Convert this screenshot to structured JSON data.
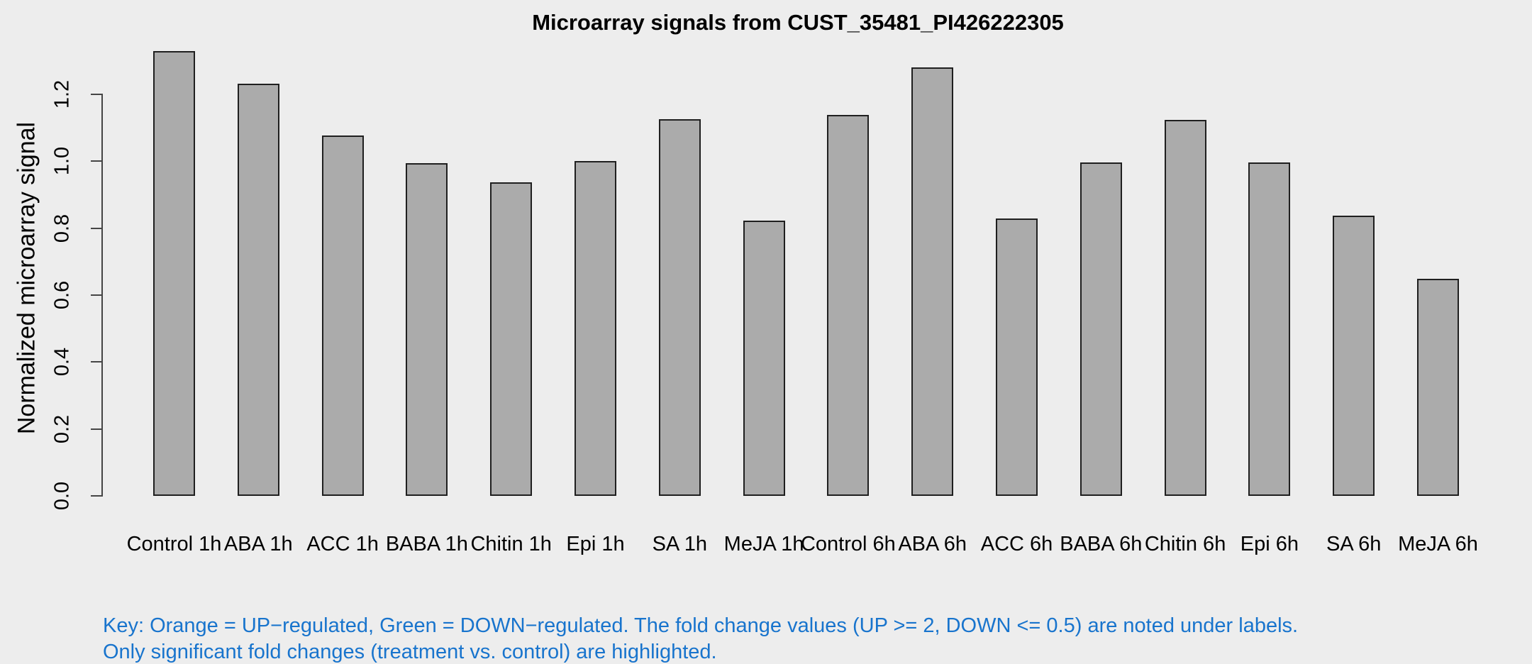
{
  "chart_data": {
    "type": "bar",
    "title": "Microarray signals from CUST_35481_PI426222305",
    "ylabel": "Normalized microarray signal",
    "xlabel": "",
    "categories": [
      "Control 1h",
      "ABA 1h",
      "ACC 1h",
      "BABA 1h",
      "Chitin 1h",
      "Epi 1h",
      "SA 1h",
      "MeJA 1h",
      "Control 6h",
      "ABA 6h",
      "ACC 6h",
      "BABA 6h",
      "Chitin 6h",
      "Epi 6h",
      "SA 6h",
      "MeJA 6h"
    ],
    "values": [
      1.329,
      1.232,
      1.077,
      0.994,
      0.938,
      1.0,
      1.125,
      0.822,
      1.138,
      1.281,
      0.828,
      0.997,
      1.124,
      0.997,
      0.838,
      0.648
    ],
    "y_ticks": [
      0.0,
      0.2,
      0.4,
      0.6,
      0.8,
      1.0,
      1.2
    ],
    "ylim": [
      0,
      1.35
    ],
    "grid": false,
    "legend_position": "none",
    "colors": {
      "background": "#EDEDED",
      "bar_fill": "#ABABAB",
      "bar_border": "#1F1F1F",
      "axis": "#454545",
      "text": "#000000"
    }
  },
  "footer": {
    "line1": "Key: Orange = UP−regulated, Green = DOWN−regulated. The fold change values (UP >= 2, DOWN <= 0.5) are noted under labels.",
    "line2": "Only significant fold changes (treatment vs. control) are highlighted.",
    "color": "#1874CD"
  }
}
